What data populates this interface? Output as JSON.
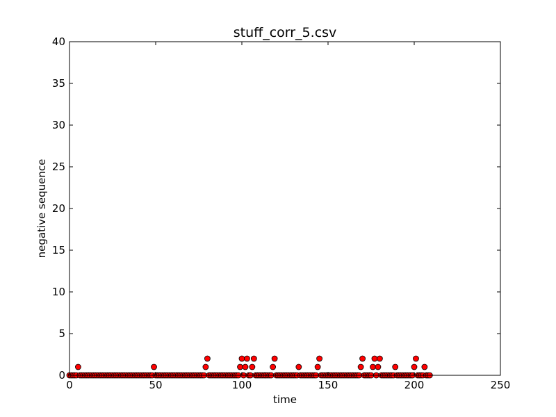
{
  "chart_data": {
    "type": "scatter",
    "title": "stuff_corr_5.csv",
    "xlabel": "time",
    "ylabel": "negative sequence",
    "xlim": [
      0,
      250
    ],
    "ylim": [
      0,
      40
    ],
    "xticks": [
      "0",
      "50",
      "100",
      "150",
      "200",
      "250"
    ],
    "yticks": [
      "0",
      "5",
      "10",
      "15",
      "20",
      "25",
      "30",
      "35",
      "40"
    ],
    "grid": false,
    "marker_color": "#ff0000",
    "marker_edge_color": "#000000",
    "series": [
      {
        "x": [
          0,
          1,
          2,
          3,
          4,
          5,
          6,
          7,
          8,
          9,
          10,
          11,
          12,
          13,
          14,
          15,
          16,
          17,
          18,
          19,
          20,
          21,
          22,
          23,
          24,
          25,
          26,
          27,
          28,
          29,
          30,
          31,
          32,
          33,
          34,
          35,
          36,
          37,
          38,
          39,
          40,
          41,
          42,
          43,
          44,
          45,
          46,
          47,
          48,
          49,
          50,
          51,
          52,
          53,
          54,
          55,
          56,
          57,
          58,
          59,
          60,
          61,
          62,
          63,
          64,
          65,
          66,
          67,
          68,
          69,
          70,
          71,
          72,
          73,
          74,
          75,
          76,
          77,
          78,
          79,
          80,
          81,
          82,
          83,
          84,
          85,
          86,
          87,
          88,
          89,
          90,
          91,
          92,
          93,
          94,
          95,
          96,
          97,
          98,
          99,
          100,
          101,
          102,
          103,
          104,
          105,
          106,
          107,
          108,
          109,
          110,
          111,
          112,
          113,
          114,
          115,
          116,
          117,
          118,
          119,
          120,
          121,
          122,
          123,
          124,
          125,
          126,
          127,
          128,
          129,
          130,
          131,
          132,
          133,
          134,
          135,
          136,
          137,
          138,
          139,
          140,
          141,
          142,
          143,
          144,
          145,
          146,
          147,
          148,
          149,
          150,
          151,
          152,
          153,
          154,
          155,
          156,
          157,
          158,
          159,
          160,
          161,
          162,
          163,
          164,
          165,
          166,
          167,
          168,
          169,
          170,
          171,
          172,
          173,
          174,
          175,
          176,
          177,
          178,
          179,
          180,
          181,
          182,
          183,
          184,
          185,
          186,
          187,
          188,
          189,
          190,
          191,
          192,
          193,
          194,
          195,
          196,
          197,
          198,
          199,
          200,
          201,
          202,
          203,
          204,
          205,
          206,
          207,
          208,
          209
        ],
        "y": [
          0,
          0,
          0,
          0,
          0,
          1,
          0,
          0,
          0,
          0,
          0,
          0,
          0,
          0,
          0,
          0,
          0,
          0,
          0,
          0,
          0,
          0,
          0,
          0,
          0,
          0,
          0,
          0,
          0,
          0,
          0,
          0,
          0,
          0,
          0,
          0,
          0,
          0,
          0,
          0,
          0,
          0,
          0,
          0,
          0,
          0,
          0,
          0,
          0,
          1,
          0,
          0,
          0,
          0,
          0,
          0,
          0,
          0,
          0,
          0,
          0,
          0,
          0,
          0,
          0,
          0,
          0,
          0,
          0,
          0,
          0,
          0,
          0,
          0,
          0,
          0,
          0,
          0,
          0,
          1,
          2,
          0,
          0,
          0,
          0,
          0,
          0,
          0,
          0,
          0,
          0,
          0,
          0,
          0,
          0,
          0,
          0,
          0,
          0,
          1,
          2,
          0,
          1,
          2,
          0,
          0,
          1,
          2,
          0,
          0,
          0,
          0,
          0,
          0,
          0,
          0,
          0,
          0,
          1,
          2,
          0,
          0,
          0,
          0,
          0,
          0,
          0,
          0,
          0,
          0,
          0,
          0,
          0,
          1,
          0,
          0,
          0,
          0,
          0,
          0,
          0,
          0,
          0,
          0,
          1,
          2,
          0,
          0,
          0,
          0,
          0,
          0,
          0,
          0,
          0,
          0,
          0,
          0,
          0,
          0,
          0,
          0,
          0,
          0,
          0,
          0,
          0,
          0,
          0,
          1,
          2,
          0,
          0,
          0,
          0,
          0,
          1,
          2,
          0,
          1,
          2,
          0,
          0,
          0,
          0,
          0,
          0,
          0,
          0,
          1,
          0,
          0,
          0,
          0,
          0,
          0,
          0,
          0,
          0,
          0,
          1,
          2,
          0,
          0,
          0,
          0,
          1,
          0,
          0,
          0
        ]
      }
    ]
  }
}
